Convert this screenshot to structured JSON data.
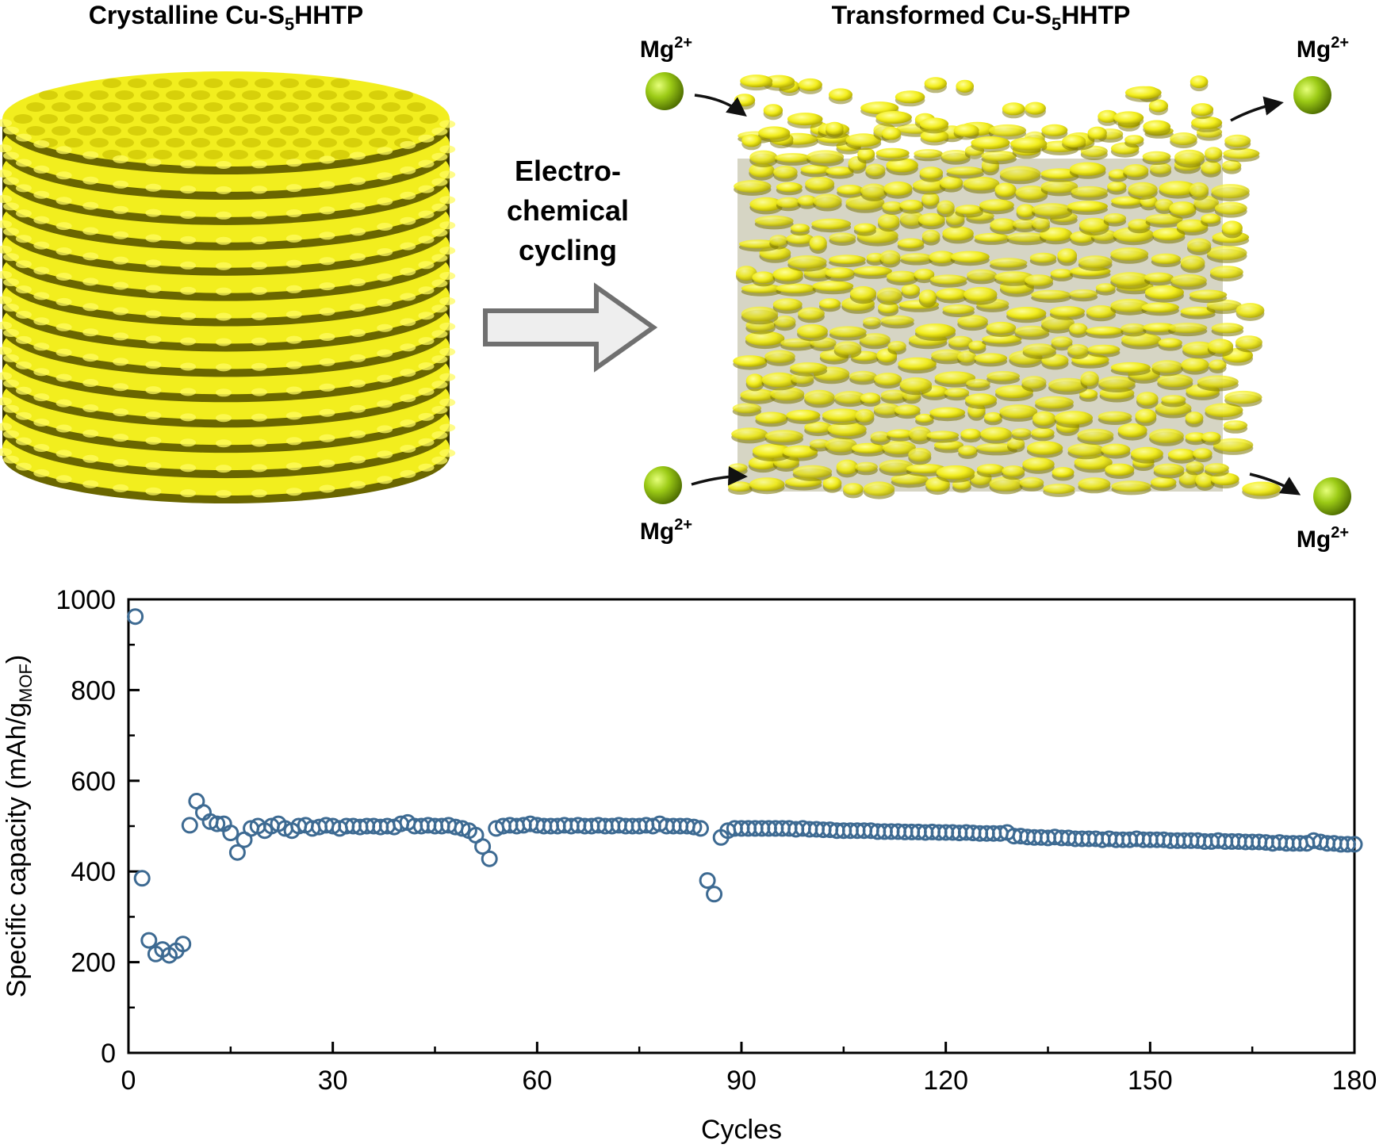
{
  "schematic": {
    "left_title": "Crystalline Cu-S",
    "left_title_sub": "5",
    "left_title_end": "HHTP",
    "right_title": "Transformed Cu-S",
    "right_title_sub": "5",
    "right_title_end": "HHTP",
    "process_lines": [
      "Electro-",
      "chemical",
      "cycling"
    ],
    "ion_label": "Mg",
    "ion_charge": "2+",
    "colors": {
      "framework": "#f2ee1e",
      "framework_dark": "#6e6a00",
      "ion": "#8fbf14",
      "arrow_fill": "#eeeeee",
      "arrow_stroke": "#707070"
    }
  },
  "chart_data": {
    "type": "scatter",
    "xlabel": "Cycles",
    "ylabel": "Specific capacity (mAh/g",
    "ylabel_sub": "MOF",
    "ylabel_end": ")",
    "xlim": [
      0,
      180
    ],
    "ylim": [
      0,
      1000
    ],
    "xticks": [
      0,
      30,
      60,
      90,
      120,
      150,
      180
    ],
    "yticks": [
      0,
      200,
      400,
      600,
      800,
      1000
    ],
    "marker": "open-circle",
    "color": "#3d6a92",
    "grid": false,
    "legend": "none",
    "points": [
      [
        1,
        962
      ],
      [
        2,
        385
      ],
      [
        3,
        248
      ],
      [
        4,
        218
      ],
      [
        5,
        228
      ],
      [
        6,
        215
      ],
      [
        7,
        225
      ],
      [
        8,
        240
      ],
      [
        9,
        502
      ],
      [
        10,
        555
      ],
      [
        11,
        530
      ],
      [
        12,
        510
      ],
      [
        13,
        505
      ],
      [
        14,
        505
      ],
      [
        15,
        485
      ],
      [
        16,
        442
      ],
      [
        17,
        470
      ],
      [
        18,
        495
      ],
      [
        19,
        500
      ],
      [
        20,
        490
      ],
      [
        21,
        500
      ],
      [
        22,
        505
      ],
      [
        23,
        495
      ],
      [
        24,
        490
      ],
      [
        25,
        500
      ],
      [
        26,
        502
      ],
      [
        27,
        495
      ],
      [
        28,
        498
      ],
      [
        29,
        502
      ],
      [
        30,
        500
      ],
      [
        31,
        495
      ],
      [
        32,
        500
      ],
      [
        33,
        500
      ],
      [
        34,
        498
      ],
      [
        35,
        500
      ],
      [
        36,
        500
      ],
      [
        37,
        498
      ],
      [
        38,
        500
      ],
      [
        39,
        498
      ],
      [
        40,
        505
      ],
      [
        41,
        508
      ],
      [
        42,
        500
      ],
      [
        43,
        500
      ],
      [
        44,
        502
      ],
      [
        45,
        500
      ],
      [
        46,
        500
      ],
      [
        47,
        502
      ],
      [
        48,
        498
      ],
      [
        49,
        495
      ],
      [
        50,
        490
      ],
      [
        51,
        480
      ],
      [
        52,
        455
      ],
      [
        53,
        428
      ],
      [
        54,
        495
      ],
      [
        55,
        500
      ],
      [
        56,
        502
      ],
      [
        57,
        500
      ],
      [
        58,
        502
      ],
      [
        59,
        505
      ],
      [
        60,
        502
      ],
      [
        61,
        500
      ],
      [
        62,
        500
      ],
      [
        63,
        500
      ],
      [
        64,
        502
      ],
      [
        65,
        500
      ],
      [
        66,
        502
      ],
      [
        67,
        500
      ],
      [
        68,
        500
      ],
      [
        69,
        502
      ],
      [
        70,
        500
      ],
      [
        71,
        500
      ],
      [
        72,
        502
      ],
      [
        73,
        500
      ],
      [
        74,
        500
      ],
      [
        75,
        500
      ],
      [
        76,
        502
      ],
      [
        77,
        500
      ],
      [
        78,
        505
      ],
      [
        79,
        500
      ],
      [
        80,
        500
      ],
      [
        81,
        500
      ],
      [
        82,
        500
      ],
      [
        83,
        498
      ],
      [
        84,
        495
      ],
      [
        85,
        380
      ],
      [
        86,
        350
      ],
      [
        87,
        475
      ],
      [
        88,
        490
      ],
      [
        89,
        495
      ],
      [
        90,
        495
      ],
      [
        91,
        495
      ],
      [
        92,
        495
      ],
      [
        93,
        495
      ],
      [
        94,
        495
      ],
      [
        95,
        495
      ],
      [
        96,
        495
      ],
      [
        97,
        495
      ],
      [
        98,
        493
      ],
      [
        99,
        495
      ],
      [
        100,
        493
      ],
      [
        101,
        493
      ],
      [
        102,
        492
      ],
      [
        103,
        492
      ],
      [
        104,
        490
      ],
      [
        105,
        490
      ],
      [
        106,
        490
      ],
      [
        107,
        490
      ],
      [
        108,
        490
      ],
      [
        109,
        490
      ],
      [
        110,
        488
      ],
      [
        111,
        488
      ],
      [
        112,
        488
      ],
      [
        113,
        488
      ],
      [
        114,
        487
      ],
      [
        115,
        487
      ],
      [
        116,
        487
      ],
      [
        117,
        486
      ],
      [
        118,
        487
      ],
      [
        119,
        486
      ],
      [
        120,
        486
      ],
      [
        121,
        486
      ],
      [
        122,
        485
      ],
      [
        123,
        486
      ],
      [
        124,
        485
      ],
      [
        125,
        484
      ],
      [
        126,
        484
      ],
      [
        127,
        484
      ],
      [
        128,
        484
      ],
      [
        129,
        486
      ],
      [
        130,
        478
      ],
      [
        131,
        478
      ],
      [
        132,
        476
      ],
      [
        133,
        475
      ],
      [
        134,
        475
      ],
      [
        135,
        474
      ],
      [
        136,
        476
      ],
      [
        137,
        474
      ],
      [
        138,
        474
      ],
      [
        139,
        472
      ],
      [
        140,
        472
      ],
      [
        141,
        472
      ],
      [
        142,
        472
      ],
      [
        143,
        470
      ],
      [
        144,
        472
      ],
      [
        145,
        470
      ],
      [
        146,
        470
      ],
      [
        147,
        470
      ],
      [
        148,
        472
      ],
      [
        149,
        470
      ],
      [
        150,
        470
      ],
      [
        151,
        470
      ],
      [
        152,
        470
      ],
      [
        153,
        468
      ],
      [
        154,
        468
      ],
      [
        155,
        468
      ],
      [
        156,
        468
      ],
      [
        157,
        468
      ],
      [
        158,
        466
      ],
      [
        159,
        466
      ],
      [
        160,
        468
      ],
      [
        161,
        466
      ],
      [
        162,
        466
      ],
      [
        163,
        466
      ],
      [
        164,
        465
      ],
      [
        165,
        465
      ],
      [
        166,
        465
      ],
      [
        167,
        464
      ],
      [
        168,
        462
      ],
      [
        169,
        464
      ],
      [
        170,
        462
      ],
      [
        171,
        462
      ],
      [
        172,
        462
      ],
      [
        173,
        462
      ],
      [
        174,
        468
      ],
      [
        175,
        465
      ],
      [
        176,
        462
      ],
      [
        177,
        462
      ],
      [
        178,
        460
      ],
      [
        179,
        460
      ],
      [
        180,
        460
      ]
    ]
  }
}
